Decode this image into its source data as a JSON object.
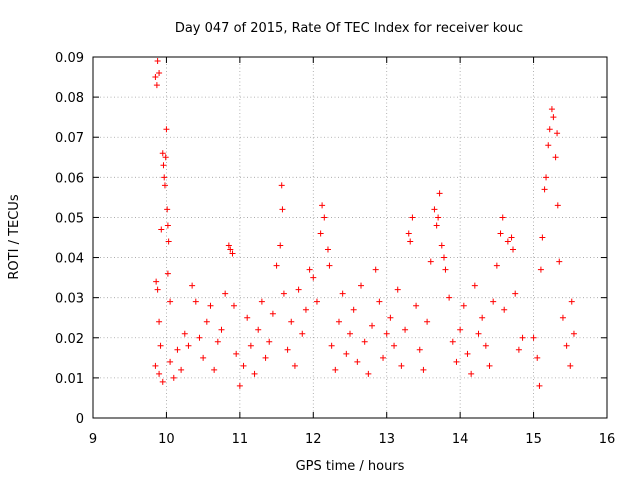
{
  "chart_data": {
    "type": "scatter",
    "title": "Day 047 of 2015, Rate Of TEC Index for receiver kouc",
    "xlabel": "GPS time / hours",
    "ylabel": "ROTI / TECUs",
    "xlim": [
      9,
      16
    ],
    "ylim": [
      0,
      0.09
    ],
    "x_ticks": [
      "9",
      "10",
      "11",
      "12",
      "13",
      "14",
      "15",
      "16"
    ],
    "y_ticks": [
      "0",
      "0.01",
      "0.02",
      "0.03",
      "0.04",
      "0.05",
      "0.06",
      "0.07",
      "0.08",
      "0.09"
    ],
    "grid": true,
    "marker": "+",
    "color": "#ff0000",
    "series": [
      {
        "name": "ROTI",
        "points": [
          [
            9.85,
            0.085
          ],
          [
            9.87,
            0.083
          ],
          [
            9.88,
            0.089
          ],
          [
            9.9,
            0.086
          ],
          [
            9.86,
            0.034
          ],
          [
            9.88,
            0.032
          ],
          [
            9.9,
            0.024
          ],
          [
            9.92,
            0.018
          ],
          [
            9.93,
            0.047
          ],
          [
            9.95,
            0.066
          ],
          [
            9.96,
            0.063
          ],
          [
            9.97,
            0.06
          ],
          [
            9.98,
            0.058
          ],
          [
            9.99,
            0.065
          ],
          [
            10.0,
            0.072
          ],
          [
            10.01,
            0.052
          ],
          [
            10.02,
            0.048
          ],
          [
            10.03,
            0.044
          ],
          [
            10.02,
            0.036
          ],
          [
            10.05,
            0.029
          ],
          [
            9.85,
            0.013
          ],
          [
            9.9,
            0.011
          ],
          [
            9.95,
            0.009
          ],
          [
            10.05,
            0.014
          ],
          [
            10.1,
            0.01
          ],
          [
            10.15,
            0.017
          ],
          [
            10.2,
            0.012
          ],
          [
            10.25,
            0.021
          ],
          [
            10.3,
            0.018
          ],
          [
            10.35,
            0.033
          ],
          [
            10.4,
            0.029
          ],
          [
            10.45,
            0.02
          ],
          [
            10.5,
            0.015
          ],
          [
            10.55,
            0.024
          ],
          [
            10.6,
            0.028
          ],
          [
            10.65,
            0.012
          ],
          [
            10.7,
            0.019
          ],
          [
            10.75,
            0.022
          ],
          [
            10.8,
            0.031
          ],
          [
            10.85,
            0.043
          ],
          [
            10.87,
            0.042
          ],
          [
            10.9,
            0.041
          ],
          [
            10.92,
            0.028
          ],
          [
            10.95,
            0.016
          ],
          [
            11.0,
            0.008
          ],
          [
            11.05,
            0.013
          ],
          [
            11.1,
            0.025
          ],
          [
            11.15,
            0.018
          ],
          [
            11.2,
            0.011
          ],
          [
            11.25,
            0.022
          ],
          [
            11.3,
            0.029
          ],
          [
            11.35,
            0.015
          ],
          [
            11.4,
            0.019
          ],
          [
            11.45,
            0.026
          ],
          [
            11.5,
            0.038
          ],
          [
            11.55,
            0.043
          ],
          [
            11.57,
            0.058
          ],
          [
            11.58,
            0.052
          ],
          [
            11.6,
            0.031
          ],
          [
            11.65,
            0.017
          ],
          [
            11.7,
            0.024
          ],
          [
            11.75,
            0.013
          ],
          [
            11.8,
            0.032
          ],
          [
            11.85,
            0.021
          ],
          [
            11.9,
            0.027
          ],
          [
            11.95,
            0.037
          ],
          [
            12.0,
            0.035
          ],
          [
            12.05,
            0.029
          ],
          [
            12.1,
            0.046
          ],
          [
            12.12,
            0.053
          ],
          [
            12.15,
            0.05
          ],
          [
            12.2,
            0.042
          ],
          [
            12.22,
            0.038
          ],
          [
            12.25,
            0.018
          ],
          [
            12.3,
            0.012
          ],
          [
            12.35,
            0.024
          ],
          [
            12.4,
            0.031
          ],
          [
            12.45,
            0.016
          ],
          [
            12.5,
            0.021
          ],
          [
            12.55,
            0.027
          ],
          [
            12.6,
            0.014
          ],
          [
            12.65,
            0.033
          ],
          [
            12.7,
            0.019
          ],
          [
            12.75,
            0.011
          ],
          [
            12.8,
            0.023
          ],
          [
            12.85,
            0.037
          ],
          [
            12.9,
            0.029
          ],
          [
            12.95,
            0.015
          ],
          [
            13.0,
            0.021
          ],
          [
            13.05,
            0.025
          ],
          [
            13.1,
            0.018
          ],
          [
            13.15,
            0.032
          ],
          [
            13.2,
            0.013
          ],
          [
            13.25,
            0.022
          ],
          [
            13.3,
            0.046
          ],
          [
            13.32,
            0.044
          ],
          [
            13.35,
            0.05
          ],
          [
            13.4,
            0.028
          ],
          [
            13.45,
            0.017
          ],
          [
            13.5,
            0.012
          ],
          [
            13.55,
            0.024
          ],
          [
            13.6,
            0.039
          ],
          [
            13.65,
            0.052
          ],
          [
            13.68,
            0.048
          ],
          [
            13.7,
            0.05
          ],
          [
            13.72,
            0.056
          ],
          [
            13.75,
            0.043
          ],
          [
            13.78,
            0.04
          ],
          [
            13.8,
            0.037
          ],
          [
            13.85,
            0.03
          ],
          [
            13.9,
            0.019
          ],
          [
            13.95,
            0.014
          ],
          [
            14.0,
            0.022
          ],
          [
            14.05,
            0.028
          ],
          [
            14.1,
            0.016
          ],
          [
            14.15,
            0.011
          ],
          [
            14.2,
            0.033
          ],
          [
            14.25,
            0.021
          ],
          [
            14.3,
            0.025
          ],
          [
            14.35,
            0.018
          ],
          [
            14.4,
            0.013
          ],
          [
            14.45,
            0.029
          ],
          [
            14.5,
            0.038
          ],
          [
            14.55,
            0.046
          ],
          [
            14.58,
            0.05
          ],
          [
            14.6,
            0.027
          ],
          [
            14.65,
            0.044
          ],
          [
            14.7,
            0.045
          ],
          [
            14.72,
            0.042
          ],
          [
            14.75,
            0.031
          ],
          [
            14.8,
            0.017
          ],
          [
            14.85,
            0.02
          ],
          [
            15.0,
            0.02
          ],
          [
            15.05,
            0.015
          ],
          [
            15.08,
            0.008
          ],
          [
            15.1,
            0.037
          ],
          [
            15.12,
            0.045
          ],
          [
            15.15,
            0.057
          ],
          [
            15.17,
            0.06
          ],
          [
            15.2,
            0.068
          ],
          [
            15.22,
            0.072
          ],
          [
            15.25,
            0.077
          ],
          [
            15.27,
            0.075
          ],
          [
            15.3,
            0.065
          ],
          [
            15.32,
            0.071
          ],
          [
            15.33,
            0.053
          ],
          [
            15.35,
            0.039
          ],
          [
            15.4,
            0.025
          ],
          [
            15.45,
            0.018
          ],
          [
            15.5,
            0.013
          ],
          [
            15.52,
            0.029
          ],
          [
            15.55,
            0.021
          ]
        ]
      }
    ]
  }
}
